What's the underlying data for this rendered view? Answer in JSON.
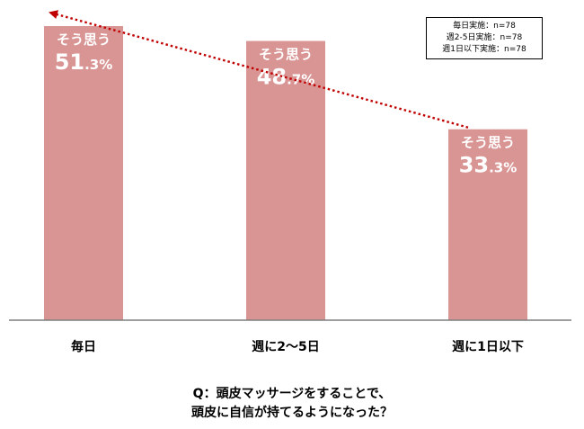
{
  "chart_data": {
    "type": "bar",
    "categories": [
      "毎日",
      "週に2〜5日",
      "週に1日以下"
    ],
    "series": [
      {
        "name": "そう思う",
        "values": [
          51.3,
          48.7,
          33.3
        ],
        "labels": [
          {
            "main": "51",
            "decimal": ".3%"
          },
          {
            "main": "48",
            "decimal": ".7%"
          },
          {
            "main": "33",
            "decimal": ".3%"
          }
        ]
      }
    ],
    "bar_label": "そう思う",
    "ylim": [
      0,
      51.3
    ],
    "grid": false,
    "colors": {
      "bar": "#d99594",
      "arrow": "#c00000",
      "axis": "#7f7f7f",
      "label_text": "#ffffff"
    },
    "legend": {
      "placement": "top-right",
      "lines": [
        "毎日実施：n=78",
        "週2-5日実施：n=78",
        "週1日以下実施：n=78"
      ]
    },
    "question": {
      "line1": "Q：頭皮マッサージをすることで、",
      "line2": "頭皮に自信が持てるようになった？"
    }
  }
}
